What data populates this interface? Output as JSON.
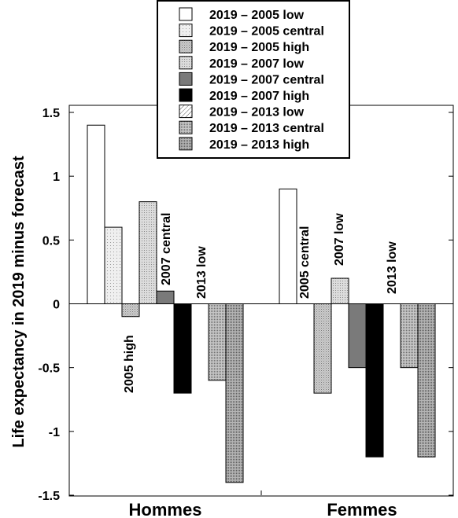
{
  "chart_data": {
    "type": "bar",
    "ylabel": "Life expectancy in 2019 minus forecast",
    "ylim": [
      -1.5,
      1.5
    ],
    "yticks": [
      "1.5",
      "1",
      "0.5",
      "0",
      "-0.5",
      "-1",
      "-1.5"
    ],
    "yticks_values": [
      1.5,
      1,
      0.5,
      0,
      -0.5,
      -1,
      -1.5
    ],
    "categories": [
      "Hommes",
      "Femmes"
    ],
    "legend_placement": "top-center",
    "series": [
      {
        "name": "2019 – 2005 low",
        "values": [
          1.4,
          0.9
        ],
        "fill": "#ffffff",
        "pattern": "none"
      },
      {
        "name": "2019 – 2005 central",
        "values": [
          0.6,
          null
        ],
        "fill": "#e6e6e6",
        "pattern": "dots-light"
      },
      {
        "name": "2019 – 2005 high",
        "values": [
          -0.1,
          -0.7
        ],
        "fill": "#c4c4c4",
        "pattern": "dots-mid"
      },
      {
        "name": "2019 – 2007 low",
        "values": [
          0.8,
          0.2
        ],
        "fill": "#d2d2d2",
        "pattern": "dots-light2"
      },
      {
        "name": "2019 – 2007 central",
        "values": [
          0.1,
          -0.5
        ],
        "fill": "#7a7a7a",
        "pattern": "none"
      },
      {
        "name": "2019 – 2007 high",
        "values": [
          -0.7,
          -1.2
        ],
        "fill": "#000000",
        "pattern": "none"
      },
      {
        "name": "2019 – 2013 low",
        "values": [
          null,
          null
        ],
        "fill": "#ffffff",
        "pattern": "hatch"
      },
      {
        "name": "2019 – 2013 central",
        "values": [
          -0.6,
          -0.5
        ],
        "fill": "#bdbdbd",
        "pattern": "dots-dense"
      },
      {
        "name": "2019 – 2013 high",
        "values": [
          -1.4,
          -1.2
        ],
        "fill": "#a9a9a9",
        "pattern": "dots-dark"
      }
    ],
    "annotations": {
      "hommes": [
        "2005 high",
        "2007 central",
        "2013 low"
      ],
      "femmes": [
        "2005 central",
        "2007 low",
        "2013 low"
      ]
    }
  }
}
